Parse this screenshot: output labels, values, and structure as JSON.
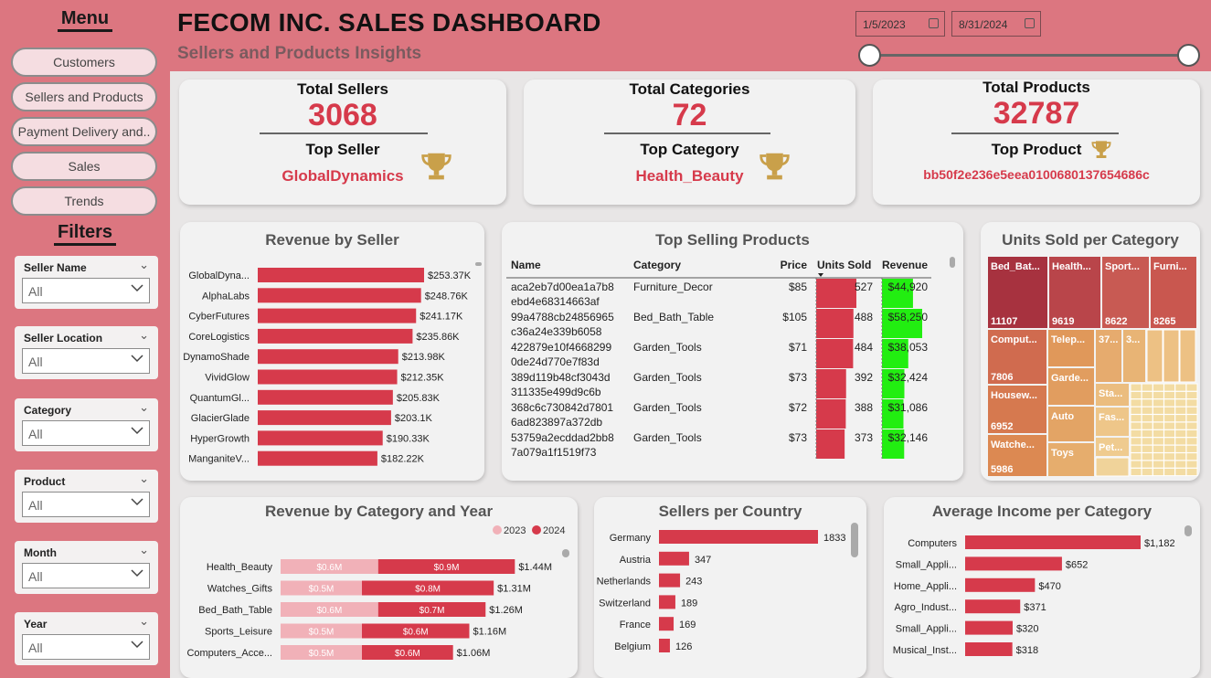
{
  "menu": {
    "title": "Menu",
    "items": [
      "Customers",
      "Sellers and Products",
      "Payment Delivery and..",
      "Sales",
      "Trends"
    ]
  },
  "filters": {
    "title": "Filters",
    "items": [
      {
        "label": "Seller Name",
        "value": "All"
      },
      {
        "label": "Seller Location",
        "value": "All"
      },
      {
        "label": "Category",
        "value": "All"
      },
      {
        "label": "Product",
        "value": "All"
      },
      {
        "label": "Month",
        "value": "All"
      },
      {
        "label": "Year",
        "value": "All"
      }
    ]
  },
  "header": {
    "title": "FECOM INC. SALES DASHBOARD",
    "subtitle": "Sellers and Products Insights",
    "date_start": "1/5/2023",
    "date_end": "8/31/2024"
  },
  "kpis": {
    "sellers": {
      "title": "Total Sellers",
      "value": "3068",
      "sub": "Top Seller",
      "top": "GlobalDynamics"
    },
    "categories": {
      "title": "Total Categories",
      "value": "72",
      "sub": "Top Category",
      "top": "Health_Beauty"
    },
    "products": {
      "title": "Total Products",
      "value": "32787",
      "sub": "Top Product",
      "top": "bb50f2e236e5eea0100680137654686c"
    }
  },
  "colors": {
    "accent": "#d63a4b",
    "header": "#dc7680",
    "bar_light": "#f1b1b8",
    "revenue_green": "#22ee11",
    "trophy": "#c9a04a"
  },
  "chart_data": [
    {
      "type": "bar",
      "title": "Revenue by Seller",
      "categories": [
        "GlobalDyna...",
        "AlphaLabs",
        "CyberFutures",
        "CoreLogistics",
        "DynamoShade",
        "VividGlow",
        "QuantumGl...",
        "GlacierGlade",
        "HyperGrowth",
        "ManganiteV..."
      ],
      "values": [
        253370,
        248760,
        241170,
        235860,
        213980,
        212350,
        205830,
        203100,
        190330,
        182220
      ],
      "labels": [
        "$253.37K",
        "$248.76K",
        "$241.17K",
        "$235.86K",
        "$213.98K",
        "$212.35K",
        "$205.83K",
        "$203.1K",
        "$190.33K",
        "$182.22K"
      ]
    },
    {
      "type": "table",
      "title": "Top Selling Products",
      "columns": [
        "Name",
        "Category",
        "Price",
        "Units Sold",
        "Revenue"
      ],
      "rows": [
        {
          "name1": "aca2eb7d00ea1a7b8",
          "name2": "ebd4e68314663af",
          "category": "Furniture_Decor",
          "price": "$85",
          "units": 527,
          "revenue": 44920,
          "revenue_label": "$44,920"
        },
        {
          "name1": "99a4788cb24856965",
          "name2": "c36a24e339b6058",
          "category": "Bed_Bath_Table",
          "price": "$105",
          "units": 488,
          "revenue": 58250,
          "revenue_label": "$58,250"
        },
        {
          "name1": "422879e10f4668299",
          "name2": "0de24d770e7f83d",
          "category": "Garden_Tools",
          "price": "$71",
          "units": 484,
          "revenue": 38053,
          "revenue_label": "$38,053"
        },
        {
          "name1": "389d119b48cf3043d",
          "name2": "311335e499d9c6b",
          "category": "Garden_Tools",
          "price": "$73",
          "units": 392,
          "revenue": 32424,
          "revenue_label": "$32,424"
        },
        {
          "name1": "368c6c730842d7801",
          "name2": "6ad823897a372db",
          "category": "Garden_Tools",
          "price": "$72",
          "units": 388,
          "revenue": 31086,
          "revenue_label": "$31,086"
        },
        {
          "name1": "53759a2ecddad2bb8",
          "name2": "7a079a1f1519f73",
          "category": "Garden_Tools",
          "price": "$73",
          "units": 373,
          "revenue": 32146,
          "revenue_label": "$32,146"
        }
      ]
    },
    {
      "type": "heatmap",
      "title": "Units Sold per Category",
      "labeled": [
        {
          "name": "Bed_Bat...",
          "value": "11107"
        },
        {
          "name": "Health...",
          "value": "9619"
        },
        {
          "name": "Sport...",
          "value": "8622"
        },
        {
          "name": "Furni...",
          "value": "8265"
        },
        {
          "name": "Comput...",
          "value": "7806"
        },
        {
          "name": "Housew...",
          "value": "6952"
        },
        {
          "name": "Watche...",
          "value": "5986"
        }
      ],
      "unlabeled": [
        "Telep...",
        "Garde...",
        "Auto",
        "Toys",
        "37...",
        "3...",
        "Sta...",
        "Fas...",
        "Pet..."
      ]
    },
    {
      "type": "bar",
      "title": "Revenue by Category and Year",
      "categories": [
        "Health_Beauty",
        "Watches_Gifts",
        "Bed_Bath_Table",
        "Sports_Leisure",
        "Computers_Acce..."
      ],
      "series": [
        {
          "name": "2023",
          "values": [
            0.6,
            0.5,
            0.6,
            0.5,
            0.5
          ],
          "labels": [
            "$0.6M",
            "$0.5M",
            "$0.6M",
            "$0.5M",
            "$0.5M"
          ]
        },
        {
          "name": "2024",
          "values": [
            0.9,
            0.8,
            0.7,
            0.6,
            0.6
          ],
          "labels": [
            "$0.9M",
            "$0.8M",
            "$0.7M",
            "$0.6M",
            "$0.6M"
          ]
        }
      ],
      "totals": [
        1.44,
        1.31,
        1.26,
        1.16,
        1.06
      ],
      "total_labels": [
        "$1.44M",
        "$1.31M",
        "$1.26M",
        "$1.16M",
        "$1.06M"
      ]
    },
    {
      "type": "bar",
      "title": "Sellers per Country",
      "categories": [
        "Germany",
        "Austria",
        "Netherlands",
        "Switzerland",
        "France",
        "Belgium"
      ],
      "values": [
        1833,
        347,
        243,
        189,
        169,
        126
      ],
      "labels": [
        "1833",
        "347",
        "243",
        "189",
        "169",
        "126"
      ]
    },
    {
      "type": "bar",
      "title": "Average Income per Category",
      "categories": [
        "Computers",
        "Small_Appli...",
        "Home_Appli...",
        "Agro_Indust...",
        "Small_Appli...",
        "Musical_Inst..."
      ],
      "values": [
        1182,
        652,
        470,
        371,
        320,
        318
      ],
      "labels": [
        "$1,182",
        "$652",
        "$470",
        "$371",
        "$320",
        "$318"
      ]
    }
  ]
}
